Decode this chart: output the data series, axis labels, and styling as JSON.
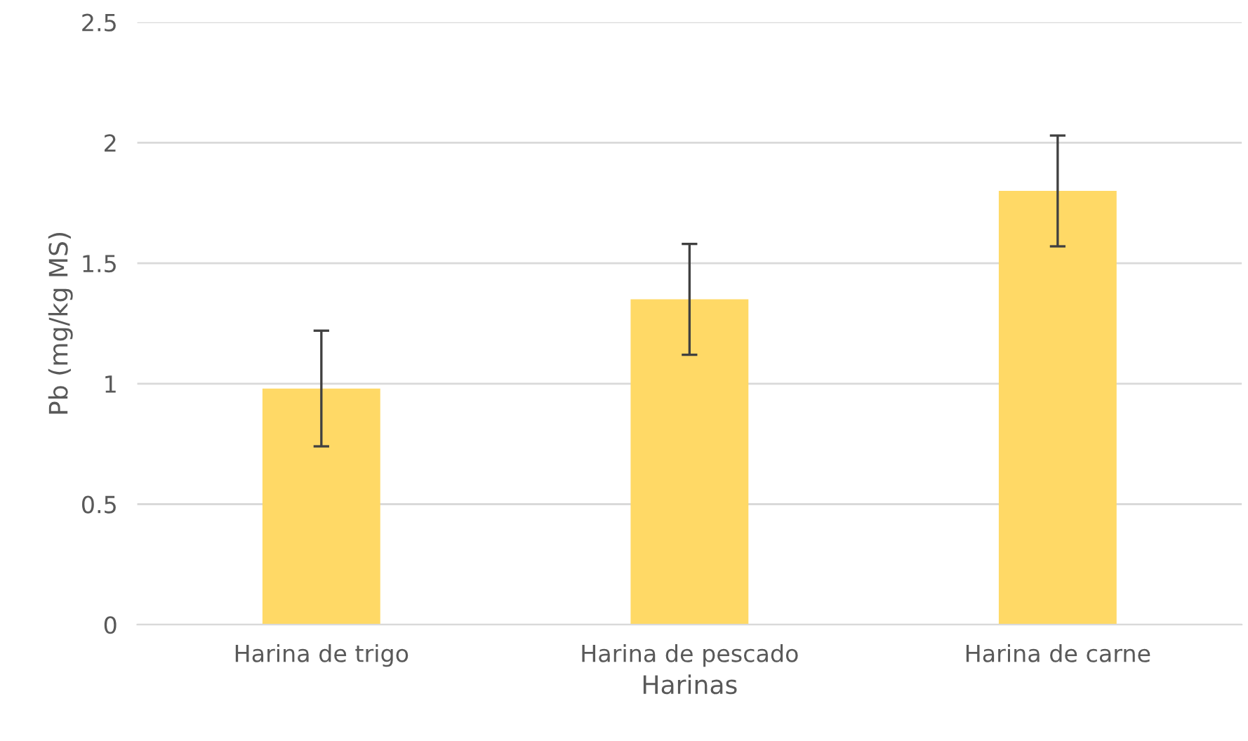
{
  "chart_data": {
    "type": "bar",
    "xlabel": "Harinas",
    "ylabel": "Pb (mg/kg MS)",
    "categories": [
      "Harina de trigo",
      "Harina de pescado",
      "Harina de carne"
    ],
    "values": [
      0.98,
      1.35,
      1.8
    ],
    "errors": [
      0.24,
      0.23,
      0.23
    ],
    "color": "#ffd966",
    "ylim": [
      0,
      2.5
    ],
    "yticks": [
      0,
      0.5,
      1,
      1.5,
      2,
      2.5
    ],
    "grid": "y"
  }
}
